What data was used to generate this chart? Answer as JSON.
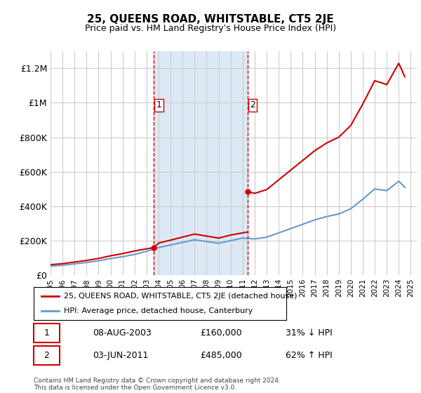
{
  "title": "25, QUEENS ROAD, WHITSTABLE, CT5 2JE",
  "subtitle": "Price paid vs. HM Land Registry's House Price Index (HPI)",
  "xlabel": "",
  "ylabel": "",
  "background_color": "#ffffff",
  "plot_bg_color": "#ffffff",
  "grid_color": "#cccccc",
  "shade_color": "#dce9f5",
  "ylim": [
    0,
    1300000
  ],
  "xlim_start": 1995.0,
  "xlim_end": 2025.5,
  "yticks": [
    0,
    200000,
    400000,
    600000,
    800000,
    1000000,
    1200000
  ],
  "ytick_labels": [
    "£0",
    "£200K",
    "£400K",
    "£600K",
    "£800K",
    "£1M",
    "£1.2M"
  ],
  "sale1": {
    "year": 2003.6,
    "price": 160000,
    "label": "1"
  },
  "sale2": {
    "year": 2011.4,
    "price": 485000,
    "label": "2"
  },
  "vline1_x": 2003.6,
  "vline2_x": 2011.4,
  "legend_line1": "25, QUEENS ROAD, WHITSTABLE, CT5 2JE (detached house)",
  "legend_line2": "HPI: Average price, detached house, Canterbury",
  "table_row1": [
    "1",
    "08-AUG-2003",
    "£160,000",
    "31% ↓ HPI"
  ],
  "table_row2": [
    "2",
    "03-JUN-2011",
    "£485,000",
    "62% ↑ HPI"
  ],
  "footer": "Contains HM Land Registry data © Crown copyright and database right 2024.\nThis data is licensed under the Open Government Licence v3.0.",
  "line_color_red": "#cc0000",
  "line_color_blue": "#6699cc",
  "hpi_years": [
    1995,
    1996,
    1997,
    1998,
    1999,
    2000,
    2001,
    2002,
    2003,
    2004,
    2005,
    2006,
    2007,
    2008,
    2009,
    2010,
    2011,
    2012,
    2013,
    2014,
    2015,
    2016,
    2017,
    2018,
    2019,
    2020,
    2021,
    2022,
    2023,
    2024,
    2024.5
  ],
  "hpi_values": [
    52000,
    57000,
    65000,
    73000,
    83000,
    96000,
    107000,
    120000,
    138000,
    160000,
    175000,
    190000,
    205000,
    195000,
    185000,
    200000,
    215000,
    210000,
    220000,
    245000,
    270000,
    295000,
    320000,
    340000,
    355000,
    385000,
    440000,
    500000,
    490000,
    545000,
    510000
  ],
  "prop_years_seg1": [
    1995,
    1996,
    1997,
    1998,
    1999,
    2000,
    2001,
    2002,
    2003.6
  ],
  "prop_values_seg1": [
    60600,
    66400,
    75800,
    85100,
    96700,
    111900,
    124700,
    139900,
    160000
  ],
  "prop_years_seg2": [
    2003.6,
    2004,
    2005,
    2006,
    2007,
    2008,
    2009,
    2010,
    2011.4
  ],
  "prop_values_seg2": [
    160000,
    185700,
    203100,
    220700,
    238100,
    226400,
    214900,
    232300,
    250000
  ],
  "prop_years_seg3": [
    2011.4,
    2012,
    2013,
    2014,
    2015,
    2016,
    2017,
    2018,
    2019,
    2020,
    2021,
    2022,
    2023,
    2024,
    2024.5
  ],
  "prop_values_seg3": [
    485000,
    474300,
    496400,
    552700,
    609200,
    665500,
    721800,
    767000,
    800500,
    868100,
    992400,
    1128500,
    1105400,
    1229400,
    1151600
  ]
}
